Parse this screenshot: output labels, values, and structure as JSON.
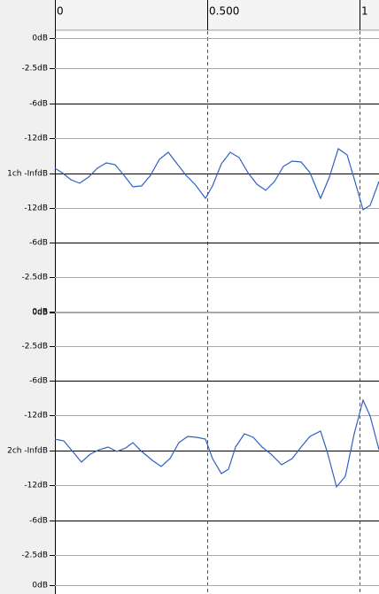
{
  "ruler": {
    "labels": [
      "0",
      "0.500",
      "1"
    ]
  },
  "channels": [
    {
      "labels": [
        "0dB",
        "-2.5dB",
        "-6dB",
        "-12dB",
        "1ch -InfdB",
        "-12dB",
        "-6dB",
        "-2.5dB",
        "0dB"
      ]
    },
    {
      "labels": [
        "0dB",
        "-2.5dB",
        "-6dB",
        "-12dB",
        "2ch -InfdB",
        "-12dB",
        "-6dB",
        "-2.5dB",
        "0dB"
      ]
    }
  ]
}
